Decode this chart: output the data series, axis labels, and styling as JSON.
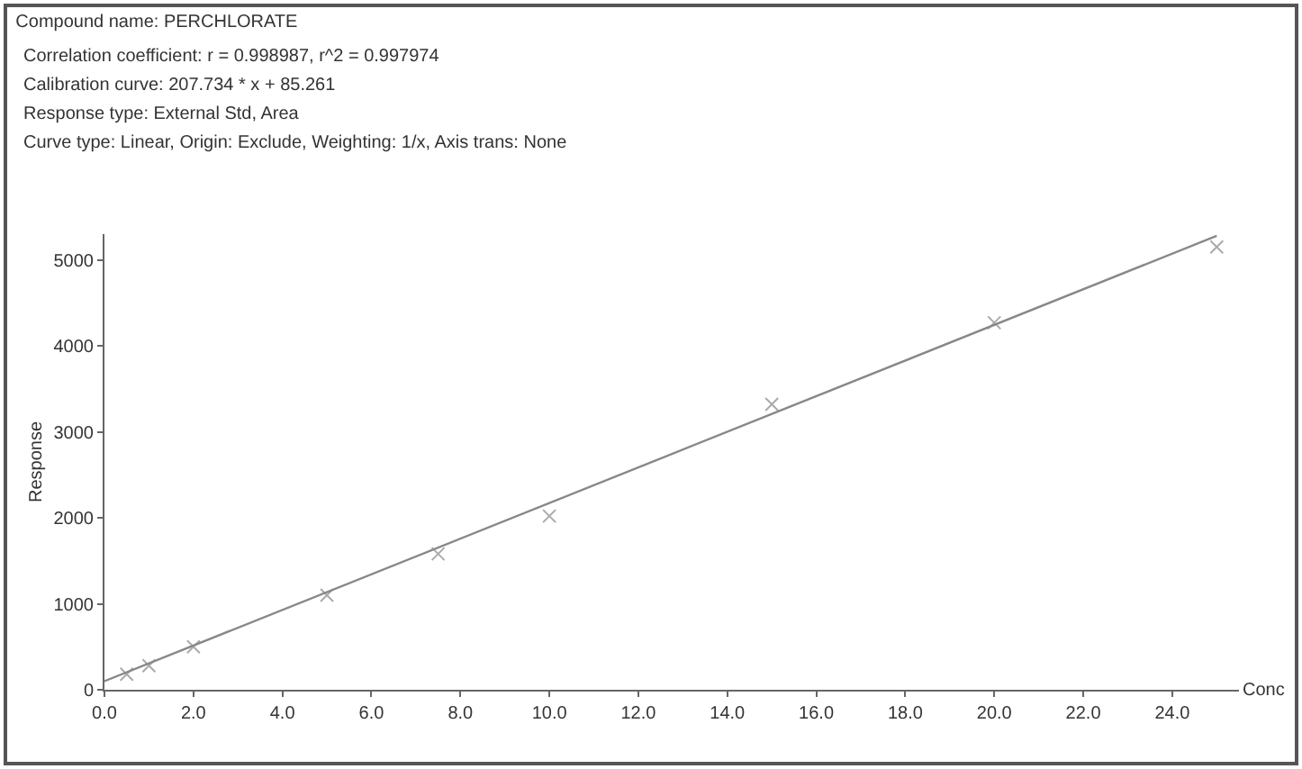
{
  "chart_data": {
    "type": "scatter",
    "title": "Compound name: PERCHLORATE",
    "annotations": [
      "Correlation coefficient: r = 0.998987, r^2 = 0.997974",
      "Calibration curve: 207.734 * x + 85.261",
      "Response type: External Std, Area",
      "Curve type: Linear, Origin: Exclude, Weighting: 1/x, Axis trans: None"
    ],
    "xlabel": "Conc",
    "ylabel": "Response",
    "series": [
      {
        "color": "#aaaaaa",
        "marker": "cross",
        "x": [
          0.5,
          1,
          2,
          5,
          7.5,
          10,
          15,
          20,
          25
        ],
        "values": [
          180,
          280,
          500,
          1100,
          1580,
          2020,
          3320,
          4270,
          5150
        ]
      },
      {
        "type": "line",
        "color": "#888888",
        "marker": "none",
        "x": [
          0,
          25
        ],
        "values": [
          100,
          5280
        ]
      }
    ],
    "xlim": [
      0,
      25.5
    ],
    "xticks": [
      {
        "value": 0,
        "label": "0.0"
      },
      {
        "value": 2,
        "label": "2.0"
      },
      {
        "value": 4,
        "label": "4.0"
      },
      {
        "value": 6,
        "label": "6.0"
      },
      {
        "value": 8,
        "label": "8.0"
      },
      {
        "value": 10,
        "label": "10.0"
      },
      {
        "value": 12,
        "label": "12.0"
      },
      {
        "value": 14,
        "label": "14.0"
      },
      {
        "value": 16,
        "label": "16.0"
      },
      {
        "value": 18,
        "label": "18.0"
      },
      {
        "value": 20,
        "label": "20.0"
      },
      {
        "value": 22,
        "label": "22.0"
      },
      {
        "value": 24,
        "label": "24.0"
      }
    ],
    "ylim": [
      0,
      5300
    ],
    "yticks": [
      0,
      1000,
      2000,
      3000,
      4000,
      5000
    ],
    "grid": false
  }
}
